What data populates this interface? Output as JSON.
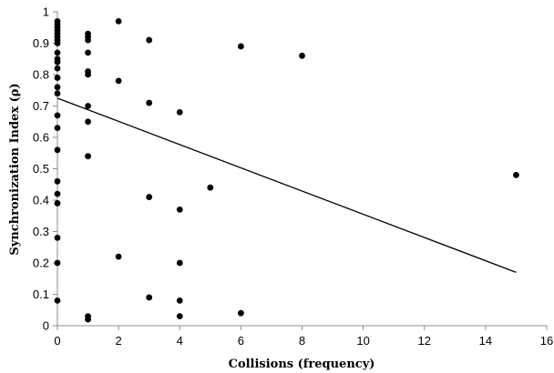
{
  "chart_data": {
    "type": "scatter",
    "title": "",
    "xlabel": "Collisions (frequency)",
    "ylabel": "Synchronization Index (ρ)",
    "xlim": [
      0,
      16
    ],
    "ylim": [
      0,
      1
    ],
    "xticks": [
      0,
      2,
      4,
      6,
      8,
      10,
      12,
      14,
      16
    ],
    "yticks": [
      0,
      0.1,
      0.2,
      0.3,
      0.4,
      0.5,
      0.6,
      0.7,
      0.8,
      0.9,
      1
    ],
    "x_tick_labels": [
      "0",
      "2",
      "4",
      "6",
      "8",
      "10",
      "12",
      "14",
      "16"
    ],
    "y_tick_labels": [
      "0",
      "0.1",
      "0.2",
      "0.3",
      "0.4",
      "0.5",
      "0.6",
      "0.7",
      "0.8",
      "0.9",
      "1"
    ],
    "grid": false,
    "legend": "none",
    "marker_color": "#000000",
    "series": [
      {
        "points": [
          [
            0,
            0.97
          ],
          [
            0,
            0.96
          ],
          [
            0,
            0.95
          ],
          [
            0,
            0.94
          ],
          [
            0,
            0.93
          ],
          [
            0,
            0.92
          ],
          [
            0,
            0.91
          ],
          [
            0,
            0.9
          ],
          [
            0,
            0.87
          ],
          [
            0,
            0.85
          ],
          [
            0,
            0.84
          ],
          [
            0,
            0.82
          ],
          [
            0,
            0.79
          ],
          [
            0,
            0.76
          ],
          [
            0,
            0.74
          ],
          [
            0,
            0.67
          ],
          [
            0,
            0.63
          ],
          [
            0,
            0.56
          ],
          [
            0,
            0.46
          ],
          [
            0,
            0.42
          ],
          [
            0,
            0.39
          ],
          [
            0,
            0.28
          ],
          [
            0,
            0.2
          ],
          [
            0,
            0.08
          ],
          [
            1,
            0.93
          ],
          [
            1,
            0.92
          ],
          [
            1,
            0.91
          ],
          [
            1,
            0.87
          ],
          [
            1,
            0.81
          ],
          [
            1,
            0.8
          ],
          [
            1,
            0.7
          ],
          [
            1,
            0.65
          ],
          [
            1,
            0.54
          ],
          [
            1,
            0.03
          ],
          [
            1,
            0.02
          ],
          [
            2,
            0.97
          ],
          [
            2,
            0.78
          ],
          [
            2,
            0.22
          ],
          [
            3,
            0.91
          ],
          [
            3,
            0.71
          ],
          [
            3,
            0.41
          ],
          [
            3,
            0.09
          ],
          [
            4,
            0.68
          ],
          [
            4,
            0.37
          ],
          [
            4,
            0.2
          ],
          [
            4,
            0.08
          ],
          [
            4,
            0.03
          ],
          [
            5,
            0.44
          ],
          [
            6,
            0.89
          ],
          [
            6,
            0.04
          ],
          [
            8,
            0.86
          ],
          [
            15,
            0.48
          ]
        ]
      }
    ],
    "trendline": {
      "type": "linear",
      "from": [
        0,
        0.725
      ],
      "to": [
        15,
        0.17
      ]
    }
  }
}
